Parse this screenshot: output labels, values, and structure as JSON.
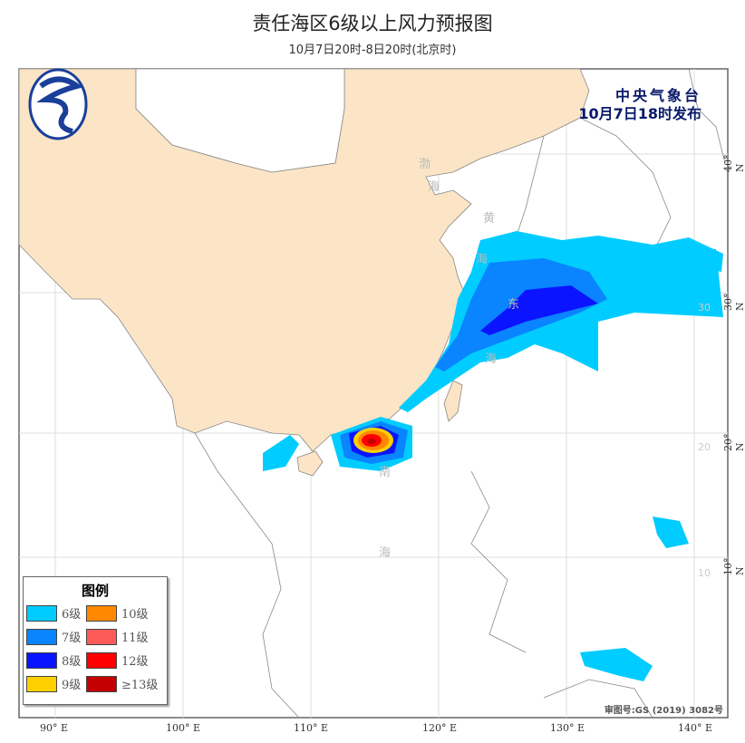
{
  "title": "责任海区6级以上风力预报图",
  "subtitle": "10月7日20时-8日20时(北京时)",
  "issuer": {
    "name": "中央气象台",
    "time": "10月7日18时发布"
  },
  "legend": {
    "title": "图例",
    "items": [
      {
        "label": "6级",
        "color": "#00ccff"
      },
      {
        "label": "7级",
        "color": "#0a84ff"
      },
      {
        "label": "8级",
        "color": "#0a14ff"
      },
      {
        "label": "9级",
        "color": "#ffd000"
      },
      {
        "label": "10级",
        "color": "#ff8800"
      },
      {
        "label": "11级",
        "color": "#ff5a5a"
      },
      {
        "label": "12级",
        "color": "#ff0000"
      },
      {
        "label": "≥13级",
        "color": "#c40000"
      }
    ]
  },
  "axes": {
    "lon": [
      "90° E",
      "100° E",
      "110° E",
      "120° E",
      "130° E",
      "140° E"
    ],
    "lat": [
      "40° N",
      "30° N",
      "20° N",
      "10° N"
    ],
    "inner_lat": [
      "30",
      "20",
      "10"
    ]
  },
  "seas": {
    "bohai": [
      "渤",
      "海"
    ],
    "huanghai": [
      "黄",
      "海"
    ],
    "donghai": [
      "东",
      "海"
    ],
    "nanhai": [
      "南",
      "海"
    ]
  },
  "approval": "审图号:GS (2019) 3082号",
  "colors": {
    "land_china": "#fbe5c6",
    "frame": "#666666",
    "issuer_text": "#0a1a6a"
  }
}
